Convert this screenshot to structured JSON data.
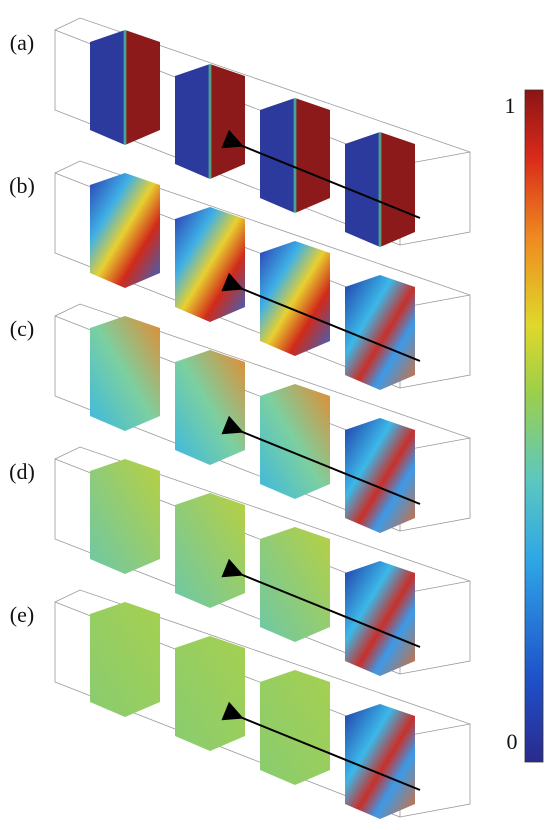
{
  "panels": [
    {
      "label": "(a)"
    },
    {
      "label": "(b)"
    },
    {
      "label": "(c)"
    },
    {
      "label": "(d)"
    },
    {
      "label": "(e)"
    }
  ],
  "colorbar": {
    "max_label": 1,
    "min_label": 0
  }
}
